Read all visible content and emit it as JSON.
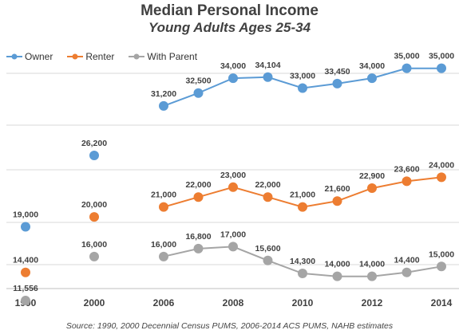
{
  "chart_data": {
    "type": "line",
    "title": "Median Personal Income",
    "subtitle": "Young Adults Ages 25-34",
    "x_ticks": [
      1990,
      2000,
      2006,
      2008,
      2010,
      2012,
      2014
    ],
    "legend_position": "top-left",
    "grid": true,
    "series": [
      {
        "name": "Owner",
        "color": "#5B9BD5",
        "points": [
          {
            "x": 1990,
            "y": 19000,
            "label": "19,000"
          },
          {
            "x": 2000,
            "y": 26200,
            "label": "26,200"
          },
          {
            "x": 2006,
            "y": 31200,
            "label": "31,200"
          },
          {
            "x": 2007,
            "y": 32500,
            "label": "32,500"
          },
          {
            "x": 2008,
            "y": 34000,
            "label": "34,000"
          },
          {
            "x": 2009,
            "y": 34104,
            "label": "34,104"
          },
          {
            "x": 2010,
            "y": 33000,
            "label": "33,000"
          },
          {
            "x": 2011,
            "y": 33450,
            "label": "33,450"
          },
          {
            "x": 2012,
            "y": 34000,
            "label": "34,000"
          },
          {
            "x": 2013,
            "y": 35000,
            "label": "35,000"
          },
          {
            "x": 2014,
            "y": 35000,
            "label": "35,000"
          }
        ]
      },
      {
        "name": "Renter",
        "color": "#ED7D31",
        "points": [
          {
            "x": 1990,
            "y": 14400,
            "label": "14,400"
          },
          {
            "x": 2000,
            "y": 20000,
            "label": "20,000"
          },
          {
            "x": 2006,
            "y": 21000,
            "label": "21,000"
          },
          {
            "x": 2007,
            "y": 22000,
            "label": "22,000"
          },
          {
            "x": 2008,
            "y": 23000,
            "label": "23,000"
          },
          {
            "x": 2009,
            "y": 22000,
            "label": "22,000"
          },
          {
            "x": 2010,
            "y": 21000,
            "label": "21,000"
          },
          {
            "x": 2011,
            "y": 21600,
            "label": "21,600"
          },
          {
            "x": 2012,
            "y": 22900,
            "label": "22,900"
          },
          {
            "x": 2013,
            "y": 23600,
            "label": "23,600"
          },
          {
            "x": 2014,
            "y": 24000,
            "label": "24,000"
          }
        ]
      },
      {
        "name": "With Parent",
        "color": "#A5A5A5",
        "points": [
          {
            "x": 1990,
            "y": 11556,
            "label": "11,556"
          },
          {
            "x": 2000,
            "y": 16000,
            "label": "16,000"
          },
          {
            "x": 2006,
            "y": 16000,
            "label": "16,000"
          },
          {
            "x": 2007,
            "y": 16800,
            "label": "16,800"
          },
          {
            "x": 2008,
            "y": 17000,
            "label": "17,000"
          },
          {
            "x": 2009,
            "y": 15600,
            "label": "15,600"
          },
          {
            "x": 2010,
            "y": 14300,
            "label": "14,300"
          },
          {
            "x": 2011,
            "y": 14000,
            "label": "14,000"
          },
          {
            "x": 2012,
            "y": 14000,
            "label": "14,000"
          },
          {
            "x": 2013,
            "y": 14400,
            "label": "14,400"
          },
          {
            "x": 2014,
            "y": 15000,
            "label": "15,000"
          }
        ]
      }
    ],
    "source": "Source: 1990, 2000 Decennial Census PUMS, 2006-2014 ACS PUMS, NAHB estimates"
  }
}
